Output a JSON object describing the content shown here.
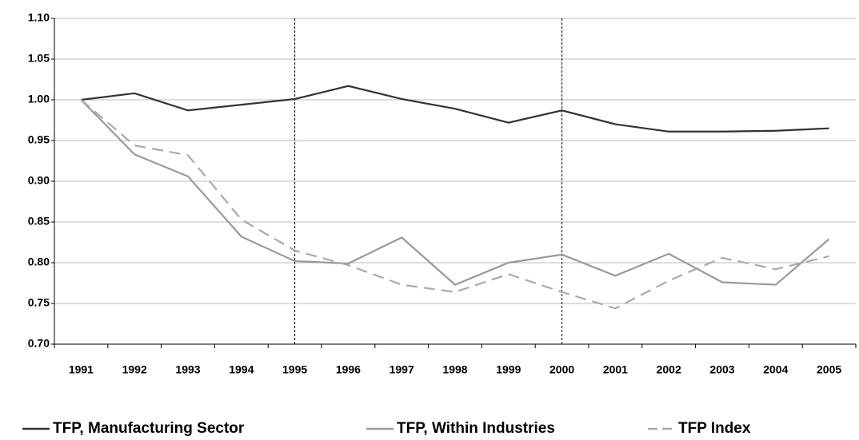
{
  "chart_data": {
    "type": "line",
    "categories": [
      "1991",
      "1992",
      "1993",
      "1994",
      "1995",
      "1996",
      "1997",
      "1998",
      "1999",
      "2000",
      "2001",
      "2002",
      "2003",
      "2004",
      "2005"
    ],
    "series": [
      {
        "name": "TFP, Manufacturing Sector",
        "color": "#333333",
        "style": "solid",
        "values": [
          1.0,
          1.008,
          0.987,
          0.994,
          1.001,
          1.017,
          1.001,
          0.989,
          0.972,
          0.987,
          0.97,
          0.961,
          0.961,
          0.962,
          0.965
        ]
      },
      {
        "name": "TFP, Within Industries",
        "color": "#999999",
        "style": "solid",
        "values": [
          1.0,
          0.933,
          0.906,
          0.832,
          0.802,
          0.799,
          0.831,
          0.773,
          0.8,
          0.81,
          0.784,
          0.811,
          0.776,
          0.773,
          0.829
        ]
      },
      {
        "name": "TFP Index",
        "color": "#aaaaaa",
        "style": "dashed",
        "values": [
          1.0,
          0.944,
          0.932,
          0.853,
          0.815,
          0.797,
          0.773,
          0.764,
          0.786,
          0.764,
          0.744,
          0.778,
          0.806,
          0.792,
          0.808
        ]
      }
    ],
    "ylim": [
      0.7,
      1.1
    ],
    "yticks": [
      {
        "value": 0.7,
        "label": "0.70"
      },
      {
        "value": 0.75,
        "label": "0.75"
      },
      {
        "value": 0.8,
        "label": "0.80"
      },
      {
        "value": 0.85,
        "label": "0.85"
      },
      {
        "value": 0.9,
        "label": "0.90"
      },
      {
        "value": 0.95,
        "label": "0.95"
      },
      {
        "value": 1.0,
        "label": "1.00"
      },
      {
        "value": 1.05,
        "label": "1.05"
      },
      {
        "value": 1.1,
        "label": "1.10"
      }
    ],
    "grid": true,
    "vlines": [
      "1995",
      "2000"
    ],
    "legend": "bottom"
  }
}
